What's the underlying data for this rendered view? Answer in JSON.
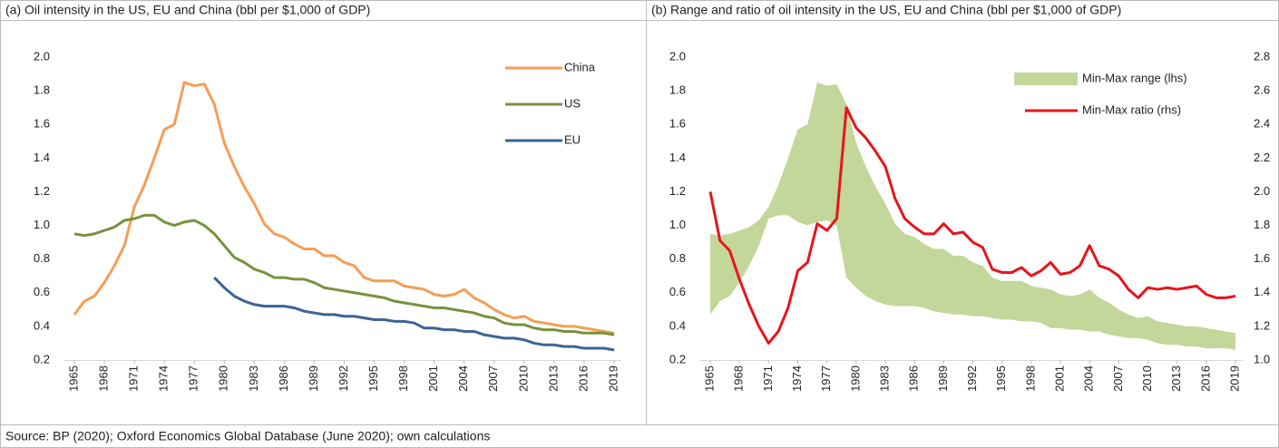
{
  "chart_data": [
    {
      "type": "line",
      "title": "(a) Oil intensity in the US, EU and China (bbl per $1,000 of GDP)",
      "x": [
        1965,
        1966,
        1967,
        1968,
        1969,
        1970,
        1971,
        1972,
        1973,
        1974,
        1975,
        1976,
        1977,
        1978,
        1979,
        1980,
        1981,
        1982,
        1983,
        1984,
        1985,
        1986,
        1987,
        1988,
        1989,
        1990,
        1991,
        1992,
        1993,
        1994,
        1995,
        1996,
        1997,
        1998,
        1999,
        2000,
        2001,
        2002,
        2003,
        2004,
        2005,
        2006,
        2007,
        2008,
        2009,
        2010,
        2011,
        2012,
        2013,
        2014,
        2015,
        2016,
        2017,
        2018,
        2019
      ],
      "xlim": [
        1965,
        2019
      ],
      "xticks": [
        1965,
        1968,
        1971,
        1974,
        1977,
        1980,
        1983,
        1986,
        1989,
        1992,
        1995,
        1998,
        2001,
        2004,
        2007,
        2010,
        2013,
        2016,
        2019
      ],
      "ylim": [
        0.2,
        2.0
      ],
      "yticks": [
        {
          "value": 0.2,
          "label": "0.2"
        },
        {
          "value": 0.4,
          "label": "0.4"
        },
        {
          "value": 0.6,
          "label": "0.6"
        },
        {
          "value": 0.8,
          "label": "0.8"
        },
        {
          "value": 1.0,
          "label": "1.0"
        },
        {
          "value": 1.2,
          "label": "1.2"
        },
        {
          "value": 1.4,
          "label": "1.4"
        },
        {
          "value": 1.6,
          "label": "1.6"
        },
        {
          "value": 1.8,
          "label": "1.8"
        },
        {
          "value": 2.0,
          "label": "2.0"
        }
      ],
      "grid": false,
      "legend": "upper right",
      "series": [
        {
          "name": "China",
          "color": "#f59d56",
          "values": [
            0.47,
            0.55,
            0.58,
            0.66,
            0.76,
            0.88,
            1.11,
            1.24,
            1.4,
            1.57,
            1.6,
            1.85,
            1.83,
            1.84,
            1.72,
            1.49,
            1.35,
            1.23,
            1.13,
            1.01,
            0.95,
            0.93,
            0.89,
            0.86,
            0.86,
            0.82,
            0.82,
            0.78,
            0.76,
            0.69,
            0.67,
            0.67,
            0.67,
            0.64,
            0.63,
            0.62,
            0.59,
            0.58,
            0.59,
            0.62,
            0.57,
            0.54,
            0.5,
            0.47,
            0.45,
            0.46,
            0.43,
            0.42,
            0.41,
            0.4,
            0.4,
            0.39,
            0.38,
            0.37,
            0.36
          ]
        },
        {
          "name": "US",
          "color": "#77933c",
          "values": [
            0.95,
            0.94,
            0.95,
            0.97,
            0.99,
            1.03,
            1.04,
            1.06,
            1.06,
            1.02,
            1.0,
            1.02,
            1.03,
            1.0,
            0.95,
            0.88,
            0.81,
            0.78,
            0.74,
            0.72,
            0.69,
            0.69,
            0.68,
            0.68,
            0.66,
            0.63,
            0.62,
            0.61,
            0.6,
            0.59,
            0.58,
            0.57,
            0.55,
            0.54,
            0.53,
            0.52,
            0.51,
            0.51,
            0.5,
            0.49,
            0.48,
            0.46,
            0.45,
            0.42,
            0.41,
            0.41,
            0.39,
            0.38,
            0.38,
            0.37,
            0.37,
            0.36,
            0.36,
            0.36,
            0.35
          ]
        },
        {
          "name": "EU",
          "color": "#3c6496",
          "values": [
            null,
            null,
            null,
            null,
            null,
            null,
            null,
            null,
            null,
            null,
            null,
            null,
            null,
            null,
            0.69,
            0.63,
            0.58,
            0.55,
            0.53,
            0.52,
            0.52,
            0.52,
            0.51,
            0.49,
            0.48,
            0.47,
            0.47,
            0.46,
            0.46,
            0.45,
            0.44,
            0.44,
            0.43,
            0.43,
            0.42,
            0.39,
            0.39,
            0.38,
            0.38,
            0.37,
            0.37,
            0.35,
            0.34,
            0.33,
            0.33,
            0.32,
            0.3,
            0.29,
            0.29,
            0.28,
            0.28,
            0.27,
            0.27,
            0.27,
            0.26
          ]
        }
      ]
    },
    {
      "type": "range",
      "title": "(b) Range and ratio of oil intensity in the US, EU and China (bbl per $1,000 of GDP)",
      "x": [
        1965,
        1966,
        1967,
        1968,
        1969,
        1970,
        1971,
        1972,
        1973,
        1974,
        1975,
        1976,
        1977,
        1978,
        1979,
        1980,
        1981,
        1982,
        1983,
        1984,
        1985,
        1986,
        1987,
        1988,
        1989,
        1990,
        1991,
        1992,
        1993,
        1994,
        1995,
        1996,
        1997,
        1998,
        1999,
        2000,
        2001,
        2002,
        2003,
        2004,
        2005,
        2006,
        2007,
        2008,
        2009,
        2010,
        2011,
        2012,
        2013,
        2014,
        2015,
        2016,
        2017,
        2018,
        2019
      ],
      "xlim": [
        1965,
        2019
      ],
      "xticks": [
        1965,
        1968,
        1971,
        1974,
        1977,
        1980,
        1983,
        1986,
        1989,
        1992,
        1995,
        1998,
        2001,
        2004,
        2007,
        2010,
        2013,
        2016,
        2019
      ],
      "ylim": [
        0.2,
        2.0
      ],
      "yticks": [
        {
          "value": 0.2,
          "label": "0.2"
        },
        {
          "value": 0.4,
          "label": "0.4"
        },
        {
          "value": 0.6,
          "label": "0.6"
        },
        {
          "value": 0.8,
          "label": "0.8"
        },
        {
          "value": 1.0,
          "label": "1.0"
        },
        {
          "value": 1.2,
          "label": "1.2"
        },
        {
          "value": 1.4,
          "label": "1.4"
        },
        {
          "value": 1.6,
          "label": "1.6"
        },
        {
          "value": 1.8,
          "label": "1.8"
        },
        {
          "value": 2.0,
          "label": "2.0"
        }
      ],
      "y2lim": [
        1.0,
        2.8
      ],
      "y2ticks": [
        {
          "value": 1.0,
          "label": "1.0"
        },
        {
          "value": 1.2,
          "label": "1.2"
        },
        {
          "value": 1.4,
          "label": "1.4"
        },
        {
          "value": 1.6,
          "label": "1.6"
        },
        {
          "value": 1.8,
          "label": "1.8"
        },
        {
          "value": 2.0,
          "label": "2.0"
        },
        {
          "value": 2.2,
          "label": "2.2"
        },
        {
          "value": 2.4,
          "label": "2.4"
        },
        {
          "value": 2.6,
          "label": "2.6"
        },
        {
          "value": 2.8,
          "label": "2.8"
        }
      ],
      "grid": false,
      "legend": "upper right",
      "series": [
        {
          "name": "Min-Max range (lhs)",
          "color": "#c4d79b",
          "low": [
            0.47,
            0.55,
            0.58,
            0.66,
            0.76,
            0.88,
            1.04,
            1.06,
            1.06,
            1.02,
            1.0,
            1.02,
            1.03,
            1.0,
            0.69,
            0.63,
            0.58,
            0.55,
            0.53,
            0.52,
            0.52,
            0.52,
            0.51,
            0.49,
            0.48,
            0.47,
            0.47,
            0.46,
            0.46,
            0.45,
            0.44,
            0.44,
            0.43,
            0.43,
            0.42,
            0.39,
            0.39,
            0.38,
            0.38,
            0.37,
            0.37,
            0.35,
            0.34,
            0.33,
            0.33,
            0.32,
            0.3,
            0.29,
            0.29,
            0.28,
            0.28,
            0.27,
            0.27,
            0.27,
            0.26
          ],
          "high": [
            0.95,
            0.94,
            0.95,
            0.97,
            0.99,
            1.03,
            1.11,
            1.24,
            1.4,
            1.57,
            1.6,
            1.85,
            1.83,
            1.84,
            1.72,
            1.49,
            1.35,
            1.23,
            1.13,
            1.01,
            0.95,
            0.93,
            0.89,
            0.86,
            0.86,
            0.82,
            0.82,
            0.78,
            0.76,
            0.69,
            0.67,
            0.67,
            0.67,
            0.64,
            0.63,
            0.62,
            0.59,
            0.58,
            0.59,
            0.62,
            0.57,
            0.54,
            0.5,
            0.47,
            0.45,
            0.46,
            0.43,
            0.42,
            0.41,
            0.4,
            0.4,
            0.39,
            0.38,
            0.37,
            0.36
          ]
        },
        {
          "name": "Min-Max ratio (rhs)",
          "color": "#e8141b",
          "axis": "y2",
          "values": [
            2.0,
            1.71,
            1.65,
            1.48,
            1.33,
            1.2,
            1.1,
            1.17,
            1.31,
            1.53,
            1.58,
            1.81,
            1.77,
            1.84,
            2.5,
            2.38,
            2.32,
            2.24,
            2.15,
            1.96,
            1.84,
            1.79,
            1.75,
            1.75,
            1.81,
            1.75,
            1.76,
            1.7,
            1.67,
            1.54,
            1.52,
            1.52,
            1.55,
            1.5,
            1.53,
            1.58,
            1.51,
            1.52,
            1.56,
            1.68,
            1.56,
            1.54,
            1.5,
            1.42,
            1.37,
            1.43,
            1.42,
            1.43,
            1.42,
            1.43,
            1.44,
            1.39,
            1.37,
            1.37,
            1.38
          ]
        }
      ]
    }
  ],
  "source": "Source: BP (2020); Oxford Economics Global Database (June 2020); own calculations"
}
